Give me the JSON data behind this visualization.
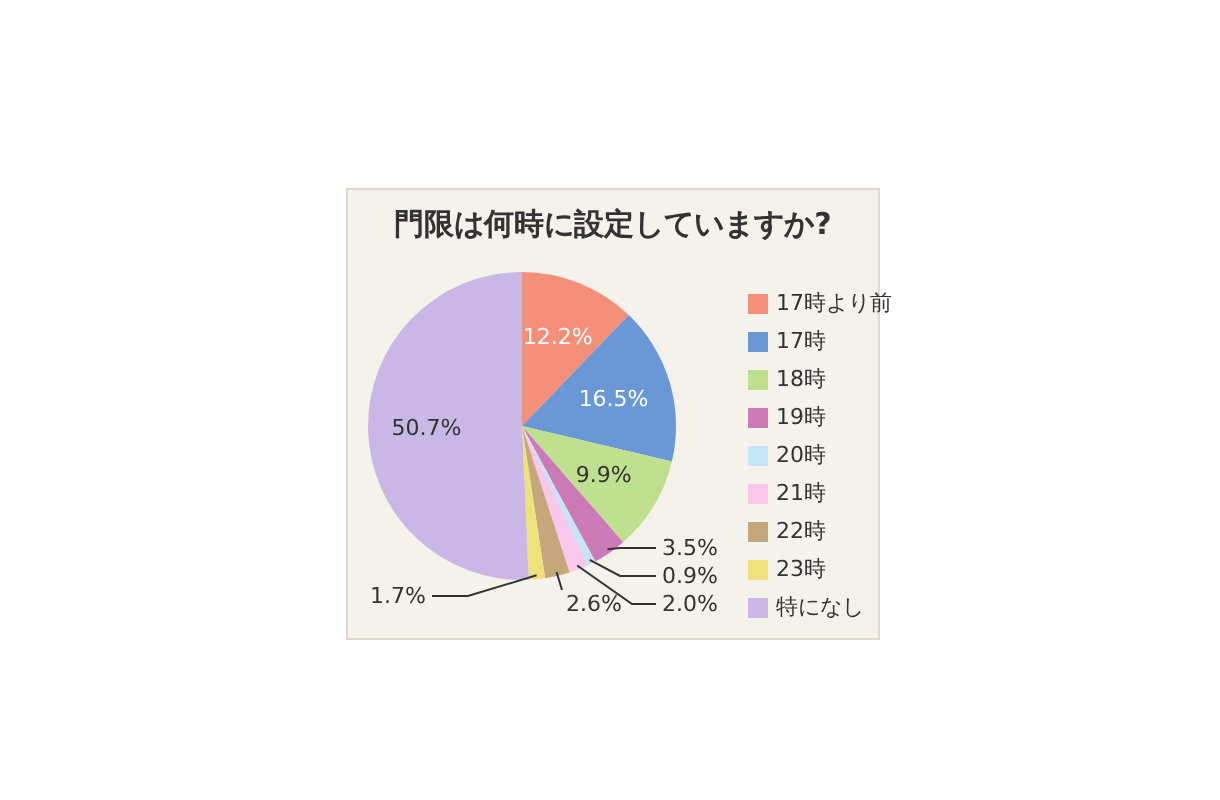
{
  "chart_data": {
    "type": "pie",
    "title": "門限は何時に設定していますか?",
    "categories": [
      "17時より前",
      "17時",
      "18時",
      "19時",
      "20時",
      "21時",
      "22時",
      "23時",
      "特になし"
    ],
    "values": [
      12.2,
      16.5,
      9.9,
      3.5,
      0.9,
      2.0,
      2.6,
      1.7,
      50.7
    ],
    "colors": [
      "#f4907a",
      "#6a97d6",
      "#bfe08e",
      "#cc7ab8",
      "#c4e6f5",
      "#f9c6ec",
      "#c4a77a",
      "#f0e27a",
      "#c9b8e6"
    ],
    "value_labels": [
      "12.2%",
      "16.5%",
      "9.9%",
      "3.5%",
      "0.9%",
      "2.0%",
      "2.6%",
      "1.7%",
      "50.7%"
    ],
    "legend": "right"
  }
}
